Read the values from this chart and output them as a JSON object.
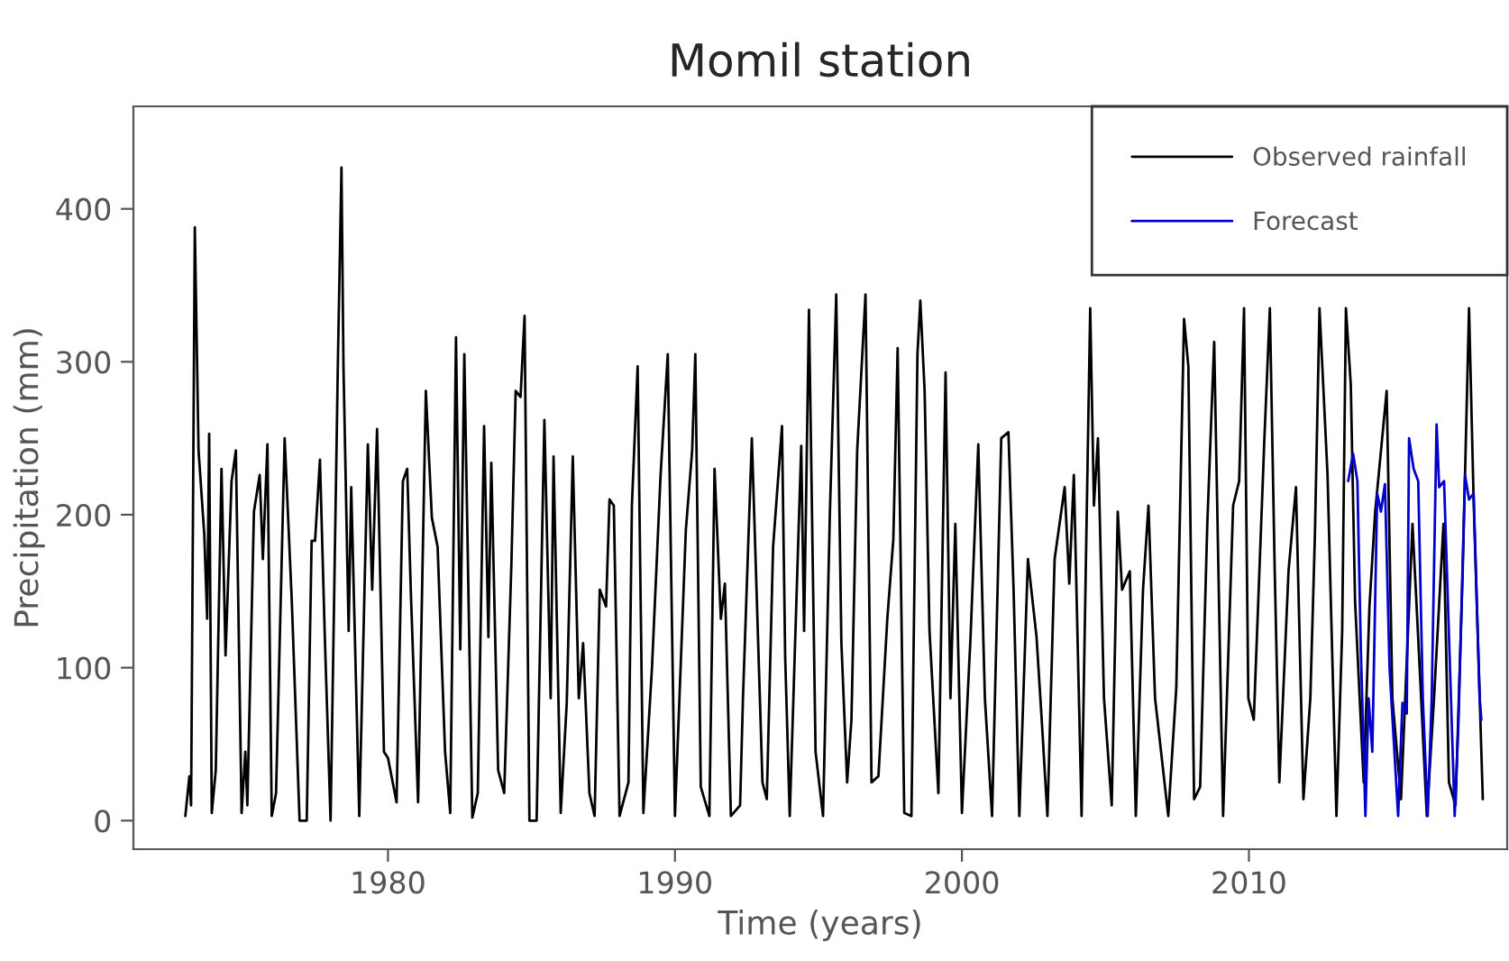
{
  "chart_data": {
    "type": "line",
    "title": "Momil station",
    "xlabel": "Time (years)",
    "ylabel": "Precipitation (mm)",
    "xlim": [
      1971.13,
      2019.0
    ],
    "ylim": [
      -18.7,
      467
    ],
    "xticks": [
      1980,
      1990,
      2000,
      2010
    ],
    "yticks": [
      0,
      100,
      200,
      300,
      400
    ],
    "grid": false,
    "legend": "top right",
    "marker": "none",
    "line_style": "solid",
    "series": [
      {
        "name": "Observed rainfall",
        "color": "#000000",
        "x": [
          1972.94,
          1973.08,
          1973.14,
          1973.27,
          1973.4,
          1973.6,
          1973.7,
          1973.77,
          1973.86,
          1974.0,
          1974.2,
          1974.34,
          1974.55,
          1974.7,
          1974.9,
          1975.03,
          1975.1,
          1975.33,
          1975.53,
          1975.64,
          1975.8,
          1975.95,
          1976.1,
          1976.4,
          1976.65,
          1976.92,
          1977.17,
          1977.34,
          1977.46,
          1977.63,
          1977.8,
          1978.0,
          1978.26,
          1978.38,
          1978.45,
          1978.63,
          1978.72,
          1979.0,
          1979.3,
          1979.45,
          1979.62,
          1979.86,
          1980.0,
          1980.3,
          1980.52,
          1980.67,
          1980.8,
          1981.05,
          1981.32,
          1981.53,
          1981.73,
          1981.99,
          1982.17,
          1982.37,
          1982.52,
          1982.66,
          1982.94,
          1983.13,
          1983.35,
          1983.5,
          1983.6,
          1983.84,
          1984.05,
          1984.3,
          1984.45,
          1984.62,
          1984.76,
          1984.93,
          1985.18,
          1985.45,
          1985.67,
          1985.77,
          1986.02,
          1986.23,
          1986.44,
          1986.65,
          1986.8,
          1987.02,
          1987.2,
          1987.38,
          1987.6,
          1987.72,
          1987.87,
          1988.07,
          1988.38,
          1988.5,
          1988.7,
          1988.9,
          1989.2,
          1989.5,
          1989.75,
          1990.0,
          1990.38,
          1990.6,
          1990.71,
          1990.9,
          1991.2,
          1991.38,
          1991.6,
          1991.74,
          1991.95,
          1992.27,
          1992.37,
          1992.68,
          1992.9,
          1993.05,
          1993.2,
          1993.42,
          1993.73,
          1993.84,
          1994.0,
          1994.4,
          1994.5,
          1994.67,
          1994.9,
          1995.16,
          1995.4,
          1995.62,
          1995.8,
          1996.0,
          1996.15,
          1996.35,
          1996.64,
          1996.85,
          1997.09,
          1997.4,
          1997.61,
          1997.76,
          1997.99,
          1998.24,
          1998.45,
          1998.55,
          1998.7,
          1998.87,
          1999.18,
          1999.43,
          1999.6,
          1999.77,
          2000.0,
          2000.3,
          2000.57,
          2000.8,
          2001.05,
          2001.37,
          2001.62,
          2001.8,
          2002.0,
          2002.3,
          2002.6,
          2002.78,
          2002.98,
          2003.23,
          2003.58,
          2003.74,
          2003.9,
          2004.17,
          2004.47,
          2004.6,
          2004.74,
          2004.95,
          2005.22,
          2005.43,
          2005.58,
          2005.85,
          2006.06,
          2006.31,
          2006.5,
          2006.73,
          2007.19,
          2007.47,
          2007.74,
          2007.89,
          2008.09,
          2008.3,
          2008.55,
          2008.79,
          2008.93,
          2009.1,
          2009.45,
          2009.66,
          2009.83,
          2009.98,
          2010.17,
          2010.54,
          2010.73,
          2010.9,
          2011.06,
          2011.38,
          2011.64,
          2011.9,
          2012.14,
          2012.3,
          2012.46,
          2012.74,
          2013.05,
          2013.25,
          2013.38,
          2013.55,
          2013.7,
          2014.0,
          2014.2,
          2014.4,
          2014.8,
          2015.0,
          2015.3,
          2015.7,
          2015.95,
          2016.2,
          2016.45,
          2016.78,
          2016.97,
          2017.2,
          2017.45,
          2017.67,
          2017.83,
          2018.15
        ],
        "values": [
          3,
          29,
          10,
          388,
          242,
          187,
          132,
          253,
          5,
          33,
          230,
          108,
          222,
          242,
          5,
          45,
          10,
          202,
          226,
          171,
          246,
          3,
          18,
          250,
          143,
          0,
          0,
          183,
          183,
          236,
          120,
          0,
          305,
          427,
          297,
          124,
          218,
          3,
          246,
          151,
          256,
          45,
          41,
          12,
          222,
          230,
          148,
          12,
          281,
          198,
          179,
          45,
          5,
          316,
          112,
          305,
          2,
          18,
          258,
          120,
          234,
          33,
          18,
          167,
          281,
          277,
          330,
          0,
          0,
          262,
          80,
          238,
          5,
          77,
          238,
          80,
          116,
          18,
          3,
          151,
          140,
          210,
          206,
          3,
          25,
          206,
          297,
          5,
          100,
          226,
          305,
          3,
          190,
          242,
          305,
          22,
          3,
          230,
          132,
          155,
          3,
          10,
          80,
          250,
          116,
          25,
          14,
          179,
          258,
          108,
          3,
          245,
          124,
          334,
          45,
          3,
          202,
          344,
          116,
          25,
          66,
          242,
          344,
          25,
          29,
          132,
          184,
          309,
          5,
          3,
          305,
          340,
          281,
          124,
          18,
          293,
          80,
          194,
          5,
          120,
          246,
          80,
          3,
          250,
          254,
          151,
          3,
          171,
          120,
          66,
          3,
          171,
          218,
          155,
          226,
          3,
          335,
          206,
          250,
          80,
          10,
          202,
          151,
          163,
          3,
          151,
          206,
          80,
          3,
          87,
          328,
          297,
          14,
          22,
          194,
          313,
          171,
          3,
          206,
          222,
          335,
          80,
          66,
          250,
          335,
          163,
          25,
          163,
          218,
          14,
          80,
          187,
          335,
          226,
          3,
          124,
          335,
          285,
          143,
          25,
          140,
          202,
          281,
          80,
          14,
          194,
          100,
          3,
          80,
          194,
          25,
          10,
          163,
          335,
          210,
          14
        ]
      },
      {
        "name": "Forecast",
        "color": "#0000cc",
        "x": [
          2013.46,
          2013.63,
          2013.78,
          2013.9,
          2014.06,
          2014.17,
          2014.3,
          2014.47,
          2014.6,
          2014.74,
          2014.9,
          2015.2,
          2015.35,
          2015.5,
          2015.58,
          2015.74,
          2015.9,
          2016.06,
          2016.23,
          2016.37,
          2016.54,
          2016.63,
          2016.8,
          2017.0,
          2017.17,
          2017.3,
          2017.53,
          2017.67,
          2017.83,
          2018.04,
          2018.1
        ],
        "values": [
          222,
          240,
          222,
          112,
          3,
          80,
          45,
          214,
          202,
          220,
          100,
          3,
          77,
          70,
          250,
          230,
          222,
          80,
          3,
          80,
          259,
          218,
          222,
          104,
          3,
          63,
          226,
          210,
          214,
          80,
          66
        ]
      }
    ]
  }
}
